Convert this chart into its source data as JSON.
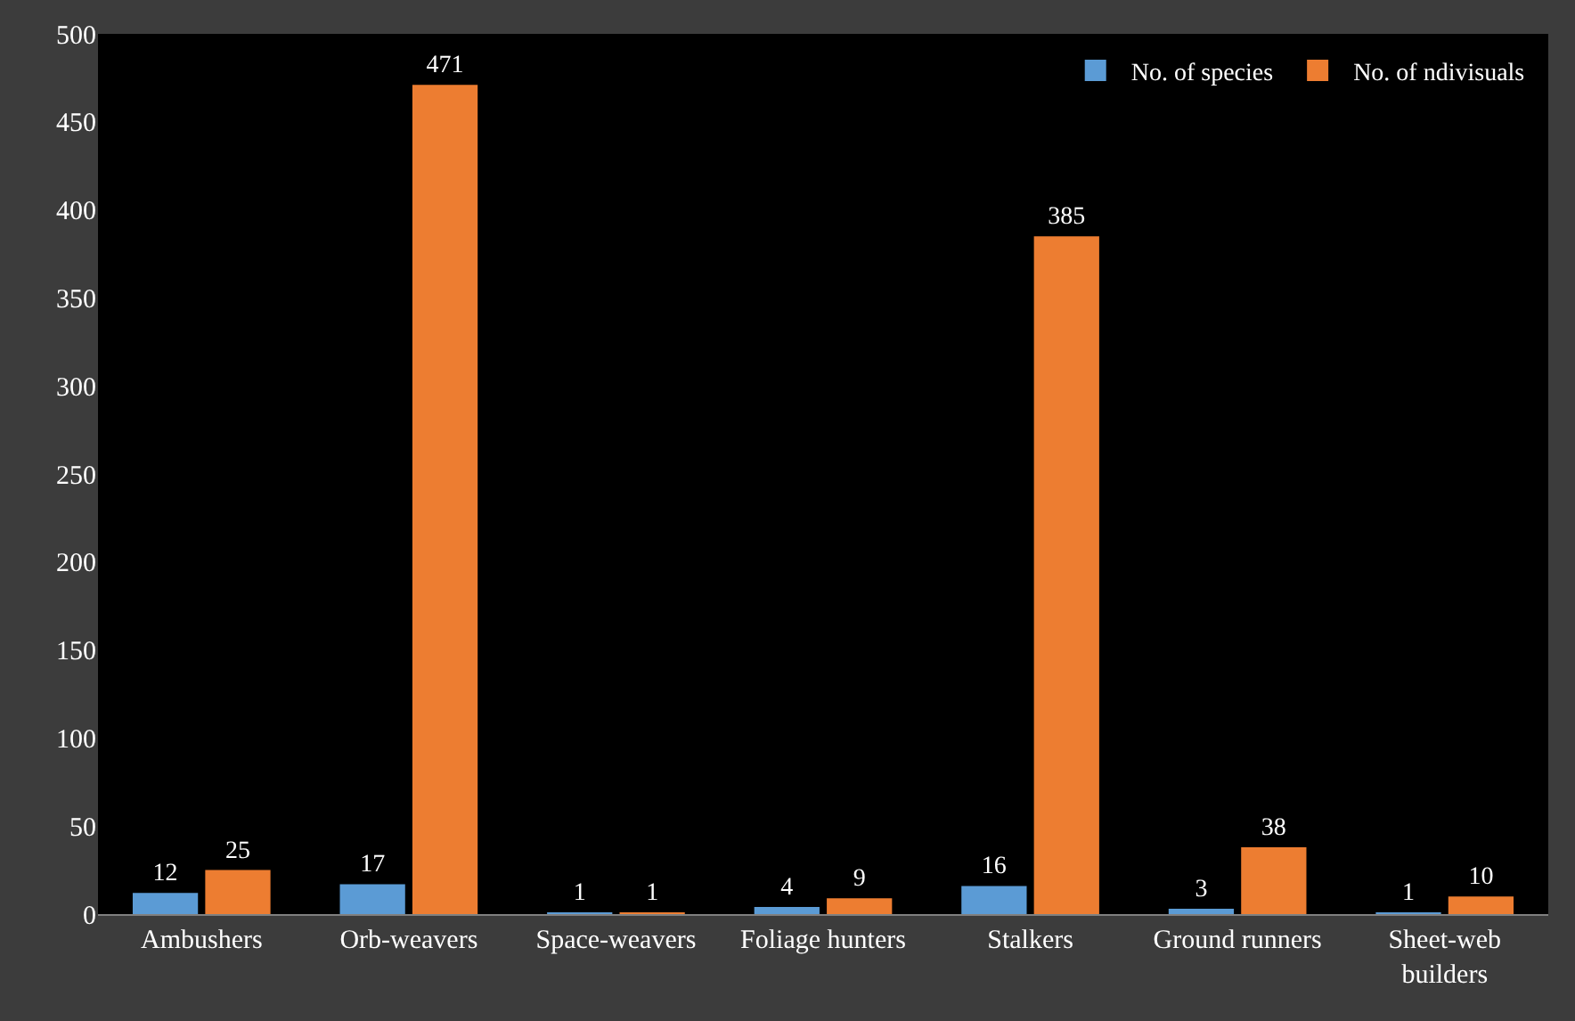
{
  "chart_data": {
    "type": "bar",
    "categories": [
      "Ambushers",
      "Orb-weavers",
      "Space-weavers",
      "Foliage hunters",
      "Stalkers",
      "Ground runners",
      "Sheet-web builders"
    ],
    "series": [
      {
        "name": "No. of species",
        "color": "#5b9bd5",
        "values": [
          12,
          17,
          1,
          4,
          16,
          3,
          1
        ]
      },
      {
        "name": "No. of ndivisuals",
        "color": "#ed7d31",
        "values": [
          25,
          471,
          1,
          9,
          385,
          38,
          10
        ]
      }
    ],
    "ylim": [
      0,
      500
    ],
    "yticks": [
      0,
      50,
      100,
      150,
      200,
      250,
      300,
      350,
      400,
      450,
      500
    ],
    "data_labels": true,
    "legend": "top right",
    "grid": false
  }
}
